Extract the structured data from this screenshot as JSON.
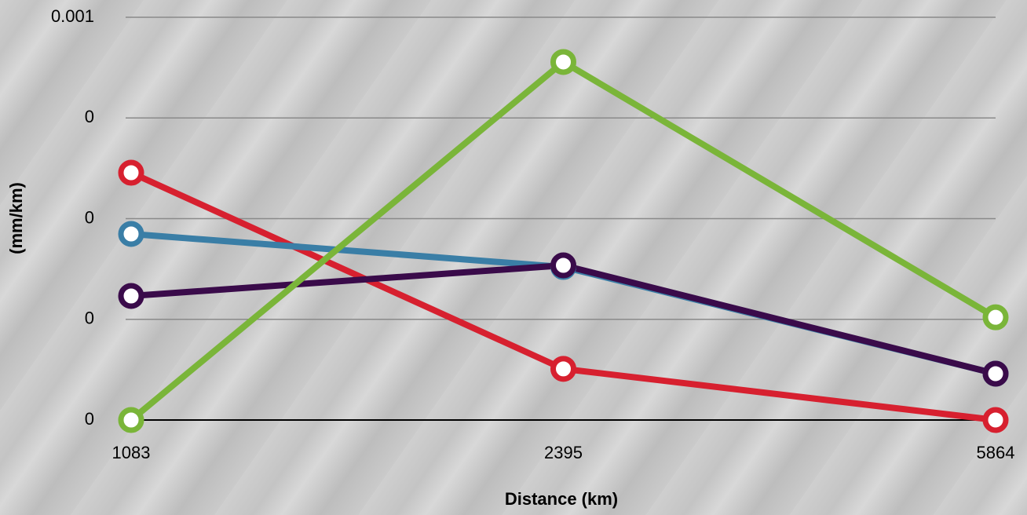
{
  "chart_data": {
    "type": "line",
    "x_label": "Distance (km)",
    "y_label": "(mm/km)",
    "categories": [
      "1083",
      "2395",
      "5864"
    ],
    "series": [
      {
        "color": "#d7202f",
        "values": [
          0.000614,
          0.000127,
          0
        ]
      },
      {
        "color": "#3a7ea6",
        "values": [
          0.000462,
          0.00038,
          0.000115
        ]
      },
      {
        "color": "#3a0b4a",
        "values": [
          0.000308,
          0.000384,
          0.000115
        ]
      },
      {
        "color": "#7ab539",
        "values": [
          0,
          0.000889,
          0.000255
        ]
      }
    ],
    "ylim": [
      0,
      0.001
    ],
    "yticks": [
      0,
      {
        "value": 0.00025,
        "label": "0"
      },
      {
        "value": 0.0005,
        "label": "0"
      },
      {
        "value": 0.00075,
        "label": "0"
      },
      0.001
    ],
    "grid": true
  }
}
